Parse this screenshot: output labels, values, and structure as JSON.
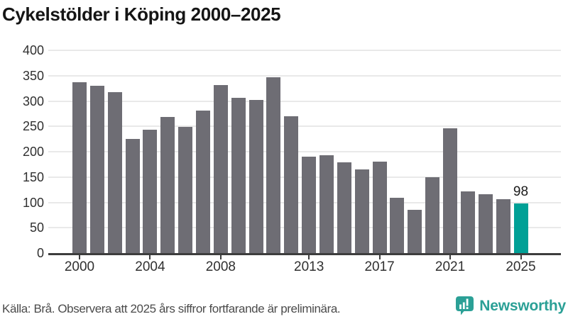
{
  "header": {
    "title": "Cykelstölder i Köping 2000–2025"
  },
  "chart_data": {
    "type": "bar",
    "title": "Cykelstölder i Köping 2000–2025",
    "x": [
      2000,
      2001,
      2002,
      2003,
      2004,
      2005,
      2006,
      2007,
      2008,
      2009,
      2010,
      2011,
      2012,
      2013,
      2014,
      2015,
      2016,
      2017,
      2018,
      2019,
      2020,
      2021,
      2022,
      2023,
      2024,
      2025
    ],
    "values": [
      337,
      330,
      318,
      226,
      243,
      269,
      249,
      282,
      332,
      307,
      302,
      347,
      270,
      191,
      193,
      179,
      166,
      181,
      109,
      86,
      150,
      247,
      122,
      117,
      106,
      98
    ],
    "x_tick_labels": [
      "2000",
      "2004",
      "2008",
      "2013",
      "2017",
      "2021",
      "2025"
    ],
    "y_ticks": [
      0,
      50,
      100,
      150,
      200,
      250,
      300,
      350,
      400
    ],
    "ylim": [
      0,
      400
    ],
    "grid": "horizontal",
    "legend": "none",
    "xlabel": "",
    "ylabel": "",
    "bar_color": "#6e6d74",
    "highlight_color": "#00a096",
    "highlight_year": 2025,
    "annotation": {
      "year": 2025,
      "label": "98"
    }
  },
  "footer": {
    "source": "Källa: Brå. Observera att 2025 års siffror fortfarande är preliminära.",
    "logo_text": "Newsworthy",
    "logo_color": "#2ba096"
  }
}
